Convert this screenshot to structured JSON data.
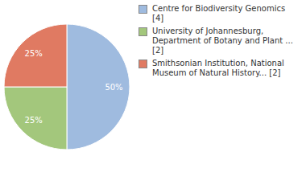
{
  "chart_data": {
    "type": "pie",
    "categories": [
      "Centre for Biodiversity Genomics [4]",
      "University of Johannesburg, Department of Botany and Plant ... [2]",
      "Smithsonian Institution, National Museum of Natural History... [2]"
    ],
    "values": [
      50,
      25,
      25
    ],
    "value_labels": [
      "50%",
      "25%",
      "25%"
    ],
    "colors": [
      "#9fbbdf",
      "#a3c77c",
      "#e07a62"
    ],
    "data_labels": true,
    "legend": "right"
  }
}
